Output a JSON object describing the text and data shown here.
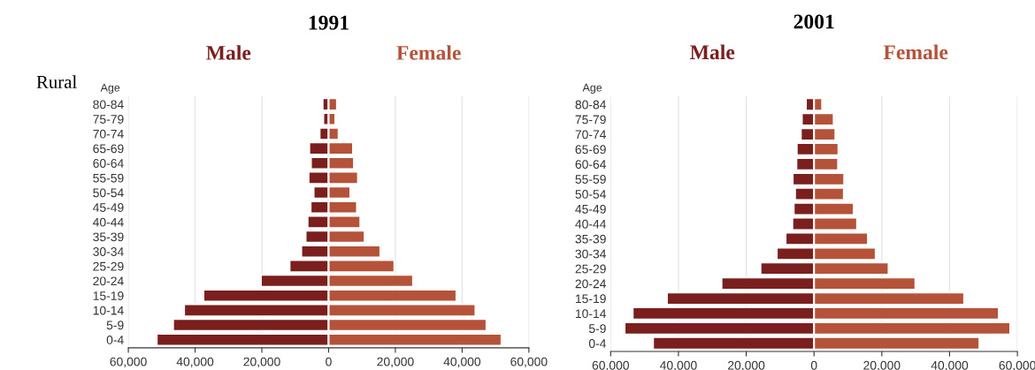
{
  "chart_data": [
    {
      "type": "bar",
      "orientation": "horizontal",
      "title": "1991",
      "ylabel": "Age",
      "annotations": [
        "Rural"
      ],
      "categories": [
        "80-84",
        "75-79",
        "70-74",
        "65-69",
        "60-64",
        "55-59",
        "50-54",
        "45-49",
        "40-44",
        "35-39",
        "30-34",
        "25-29",
        "20-24",
        "15-19",
        "10-14",
        "5-9",
        "0-4"
      ],
      "series": [
        {
          "name": "Male",
          "color": "#7a1f1d",
          "values": [
            -1800,
            -1600,
            -2700,
            -5800,
            -5300,
            -6000,
            -4500,
            -5400,
            -6300,
            -6900,
            -8200,
            -11700,
            -20300,
            -37500,
            -43300,
            -46600,
            -51500
          ]
        },
        {
          "name": "Female",
          "color": "#b5533a",
          "values": [
            2500,
            2000,
            3000,
            7300,
            7600,
            8800,
            6500,
            8500,
            9500,
            10800,
            15500,
            19700,
            25300,
            38300,
            44000,
            47300,
            51800
          ]
        }
      ],
      "xlim": [
        -60000,
        60000
      ],
      "xticks": [
        {
          "value": -60000,
          "label": "60,000"
        },
        {
          "value": -40000,
          "label": "40,000"
        },
        {
          "value": -20000,
          "label": "20,000"
        },
        0,
        {
          "value": 20000,
          "label": "20,000"
        },
        {
          "value": 40000,
          "label": "40,000"
        },
        {
          "value": 60000,
          "label": "60,000"
        }
      ],
      "grid": "x",
      "stacked": true
    },
    {
      "type": "bar",
      "orientation": "horizontal",
      "title": "2001",
      "ylabel": "Age",
      "categories": [
        "80-84",
        "75-79",
        "70-74",
        "65-69",
        "60-64",
        "55-59",
        "50-54",
        "45-49",
        "40-44",
        "35-39",
        "30-34",
        "25-29",
        "20-24",
        "15-19",
        "10-14",
        "5-9",
        "0-4"
      ],
      "series": [
        {
          "name": "Male",
          "color": "#7a1f1d",
          "values": [
            -2400,
            -3600,
            -3900,
            -5100,
            -5200,
            -6300,
            -5600,
            -6000,
            -6400,
            -8400,
            -11000,
            -15800,
            -27300,
            -43400,
            -53500,
            -55900,
            -47500
          ]
        },
        {
          "name": "Female",
          "color": "#b5533a",
          "values": [
            2400,
            5800,
            6300,
            7200,
            7100,
            8900,
            8800,
            11700,
            12700,
            15900,
            18200,
            22000,
            29900,
            44300,
            54500,
            57900,
            48800
          ]
        }
      ],
      "xlim": [
        -60000,
        60000
      ],
      "xticks": [
        {
          "value": -60000,
          "label": "60,000"
        },
        {
          "value": -40000,
          "label": "40,000"
        },
        {
          "value": -20000,
          "label": "20,000"
        },
        0,
        {
          "value": 20000,
          "label": "20,000"
        },
        {
          "value": 40000,
          "label": "40,000"
        },
        {
          "value": 60000,
          "label": "60,000"
        }
      ],
      "grid": "x",
      "stacked": true
    }
  ]
}
